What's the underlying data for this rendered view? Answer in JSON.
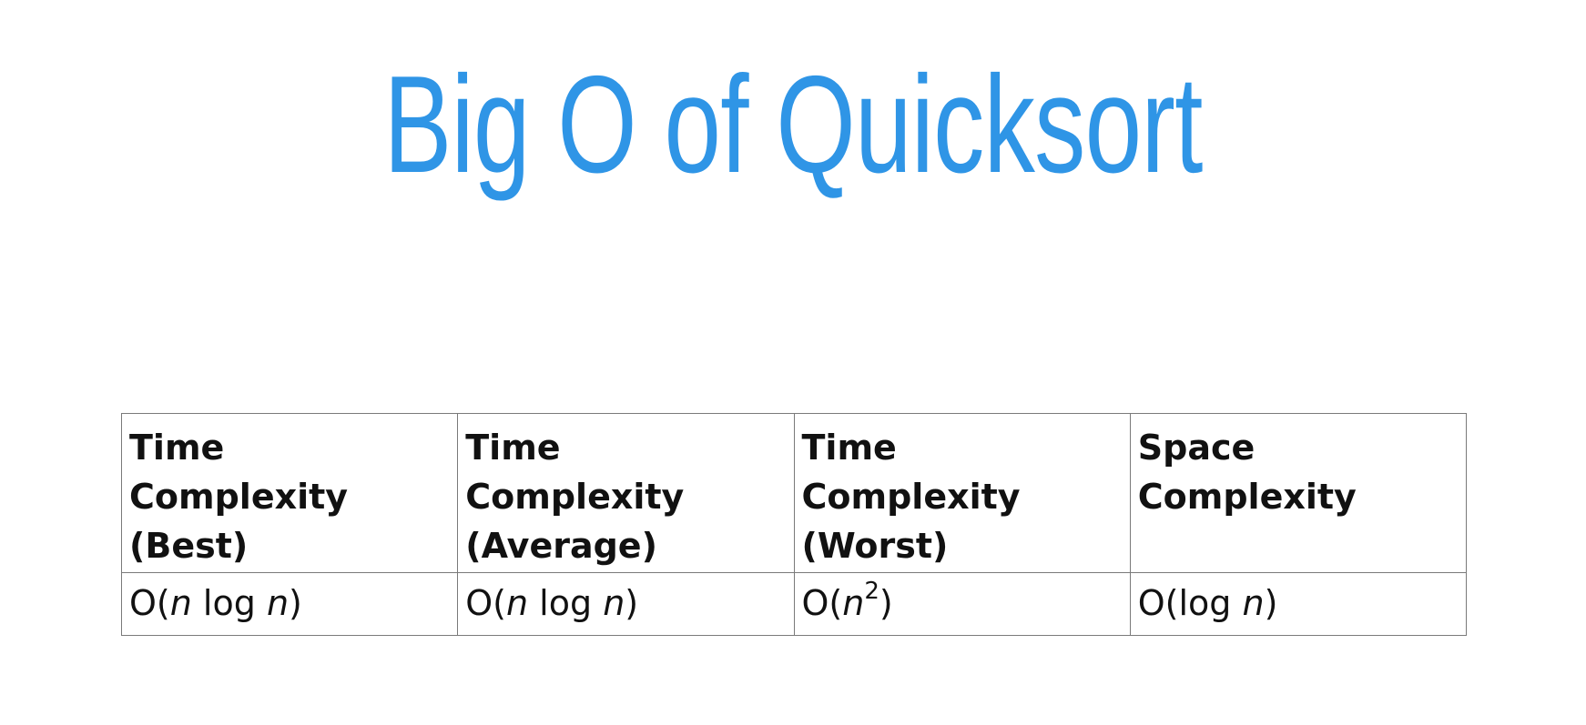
{
  "slide": {
    "title": "Big O of Quicksort"
  },
  "table": {
    "headers": [
      [
        "Time",
        "Complexity",
        "(Best)"
      ],
      [
        "Time",
        "Complexity",
        "(Average)"
      ],
      [
        "Time",
        "Complexity",
        "(Worst)"
      ],
      [
        "Space",
        "Complexity"
      ]
    ],
    "row": {
      "best": {
        "prefix": "O(",
        "v1": "n",
        "mid": " log ",
        "v2": "n",
        "suffix": ")"
      },
      "average": {
        "prefix": "O(",
        "v1": "n",
        "mid": " log ",
        "v2": "n",
        "suffix": ")"
      },
      "worst": {
        "prefix": "O(",
        "v1": "n",
        "exp": "2",
        "suffix": ")"
      },
      "space": {
        "prefix": "O(log ",
        "v1": "n",
        "suffix": ")"
      }
    }
  },
  "colors": {
    "title": "#2f95e6",
    "text": "#111111",
    "border": "#7a7a7a",
    "background": "#ffffff"
  }
}
